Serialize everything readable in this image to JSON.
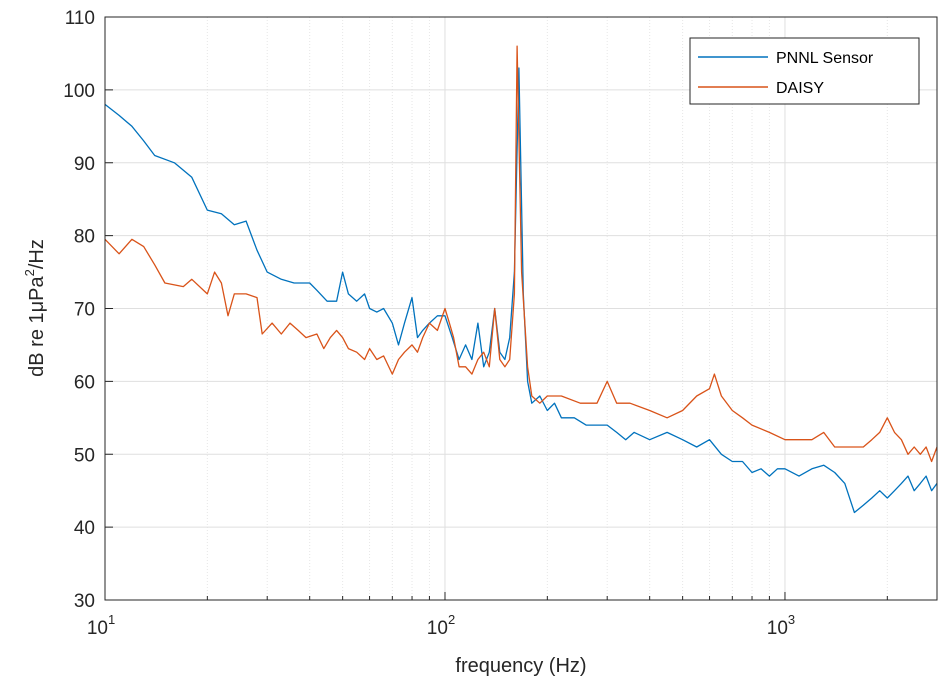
{
  "chart_data": {
    "type": "line",
    "xlabel": "frequency (Hz)",
    "ylabel_main": "dB re 1",
    "ylabel_mu": "μ",
    "ylabel_unit": "Pa",
    "ylabel_sup": "2",
    "ylabel_tail": "/Hz",
    "xscale": "log",
    "xlim": [
      10,
      2800
    ],
    "ylim": [
      30,
      110
    ],
    "grid": true,
    "legend_position": "top-right",
    "x_ticks": [
      {
        "base": "10",
        "exp": "1"
      },
      {
        "base": "10",
        "exp": "2"
      },
      {
        "base": "10",
        "exp": "3"
      }
    ],
    "y_ticks": [
      "30",
      "40",
      "50",
      "60",
      "70",
      "80",
      "90",
      "100",
      "110"
    ],
    "series": [
      {
        "name": "PNNL Sensor",
        "color": "#0072BD",
        "points": [
          [
            10,
            98
          ],
          [
            11,
            96.5
          ],
          [
            12,
            95
          ],
          [
            13,
            93
          ],
          [
            14,
            91
          ],
          [
            16,
            90
          ],
          [
            18,
            88
          ],
          [
            20,
            83.5
          ],
          [
            22,
            83
          ],
          [
            24,
            81.5
          ],
          [
            26,
            82
          ],
          [
            28,
            78
          ],
          [
            30,
            75
          ],
          [
            33,
            74
          ],
          [
            36,
            73.5
          ],
          [
            40,
            73.5
          ],
          [
            42,
            72.5
          ],
          [
            45,
            71
          ],
          [
            48,
            71
          ],
          [
            50,
            75
          ],
          [
            52,
            72
          ],
          [
            55,
            71
          ],
          [
            58,
            72
          ],
          [
            60,
            70
          ],
          [
            63,
            69.5
          ],
          [
            66,
            70
          ],
          [
            70,
            68
          ],
          [
            73,
            65
          ],
          [
            76,
            68
          ],
          [
            80,
            71.5
          ],
          [
            83,
            66
          ],
          [
            86,
            67
          ],
          [
            90,
            68
          ],
          [
            95,
            69
          ],
          [
            100,
            69
          ],
          [
            105,
            66
          ],
          [
            110,
            63
          ],
          [
            115,
            65
          ],
          [
            120,
            63
          ],
          [
            125,
            68
          ],
          [
            130,
            62
          ],
          [
            135,
            64
          ],
          [
            140,
            70
          ],
          [
            145,
            64
          ],
          [
            150,
            63
          ],
          [
            155,
            66
          ],
          [
            160,
            75
          ],
          [
            165,
            103
          ],
          [
            170,
            72
          ],
          [
            175,
            60
          ],
          [
            180,
            57
          ],
          [
            190,
            58
          ],
          [
            200,
            56
          ],
          [
            210,
            57
          ],
          [
            220,
            55
          ],
          [
            240,
            55
          ],
          [
            260,
            54
          ],
          [
            280,
            54
          ],
          [
            300,
            54
          ],
          [
            320,
            53
          ],
          [
            340,
            52
          ],
          [
            360,
            53
          ],
          [
            400,
            52
          ],
          [
            450,
            53
          ],
          [
            500,
            52
          ],
          [
            550,
            51
          ],
          [
            600,
            52
          ],
          [
            650,
            50
          ],
          [
            700,
            49
          ],
          [
            750,
            49
          ],
          [
            800,
            47.5
          ],
          [
            850,
            48
          ],
          [
            900,
            47
          ],
          [
            950,
            48
          ],
          [
            1000,
            48
          ],
          [
            1100,
            47
          ],
          [
            1200,
            48
          ],
          [
            1300,
            48.5
          ],
          [
            1400,
            47.5
          ],
          [
            1500,
            46
          ],
          [
            1600,
            42
          ],
          [
            1700,
            43
          ],
          [
            1800,
            44
          ],
          [
            1900,
            45
          ],
          [
            2000,
            44
          ],
          [
            2100,
            45
          ],
          [
            2200,
            46
          ],
          [
            2300,
            47
          ],
          [
            2400,
            45
          ],
          [
            2500,
            46
          ],
          [
            2600,
            47
          ],
          [
            2700,
            45
          ],
          [
            2800,
            46
          ]
        ]
      },
      {
        "name": "DAISY",
        "color": "#D95319",
        "points": [
          [
            10,
            79.5
          ],
          [
            11,
            77.5
          ],
          [
            12,
            79.5
          ],
          [
            13,
            78.5
          ],
          [
            14,
            76
          ],
          [
            15,
            73.5
          ],
          [
            17,
            73
          ],
          [
            18,
            74
          ],
          [
            20,
            72
          ],
          [
            21,
            75
          ],
          [
            22,
            73.5
          ],
          [
            23,
            69
          ],
          [
            24,
            72
          ],
          [
            26,
            72
          ],
          [
            28,
            71.5
          ],
          [
            29,
            66.5
          ],
          [
            31,
            68
          ],
          [
            33,
            66.5
          ],
          [
            35,
            68
          ],
          [
            37,
            67
          ],
          [
            39,
            66
          ],
          [
            42,
            66.5
          ],
          [
            44,
            64.5
          ],
          [
            46,
            66
          ],
          [
            48,
            67
          ],
          [
            50,
            66
          ],
          [
            52,
            64.5
          ],
          [
            55,
            64
          ],
          [
            58,
            63
          ],
          [
            60,
            64.5
          ],
          [
            63,
            63
          ],
          [
            66,
            63.5
          ],
          [
            70,
            61
          ],
          [
            73,
            63
          ],
          [
            76,
            64
          ],
          [
            80,
            65
          ],
          [
            83,
            64
          ],
          [
            86,
            66
          ],
          [
            90,
            68
          ],
          [
            95,
            67
          ],
          [
            100,
            70
          ],
          [
            103,
            68
          ],
          [
            106,
            66
          ],
          [
            110,
            62
          ],
          [
            115,
            62
          ],
          [
            120,
            61
          ],
          [
            125,
            63
          ],
          [
            130,
            64
          ],
          [
            135,
            62
          ],
          [
            140,
            70
          ],
          [
            145,
            63
          ],
          [
            150,
            62
          ],
          [
            155,
            63
          ],
          [
            160,
            72
          ],
          [
            163,
            106
          ],
          [
            168,
            75
          ],
          [
            175,
            62
          ],
          [
            180,
            58
          ],
          [
            190,
            57
          ],
          [
            200,
            58
          ],
          [
            220,
            58
          ],
          [
            250,
            57
          ],
          [
            280,
            57
          ],
          [
            300,
            60
          ],
          [
            320,
            57
          ],
          [
            350,
            57
          ],
          [
            400,
            56
          ],
          [
            450,
            55
          ],
          [
            500,
            56
          ],
          [
            550,
            58
          ],
          [
            600,
            59
          ],
          [
            620,
            61
          ],
          [
            650,
            58
          ],
          [
            700,
            56
          ],
          [
            750,
            55
          ],
          [
            800,
            54
          ],
          [
            900,
            53
          ],
          [
            1000,
            52
          ],
          [
            1100,
            52
          ],
          [
            1200,
            52
          ],
          [
            1300,
            53
          ],
          [
            1400,
            51
          ],
          [
            1500,
            51
          ],
          [
            1600,
            51
          ],
          [
            1700,
            51
          ],
          [
            1800,
            52
          ],
          [
            1900,
            53
          ],
          [
            2000,
            55
          ],
          [
            2100,
            53
          ],
          [
            2200,
            52
          ],
          [
            2300,
            50
          ],
          [
            2400,
            51
          ],
          [
            2500,
            50
          ],
          [
            2600,
            51
          ],
          [
            2700,
            49
          ],
          [
            2800,
            51
          ]
        ]
      }
    ]
  }
}
